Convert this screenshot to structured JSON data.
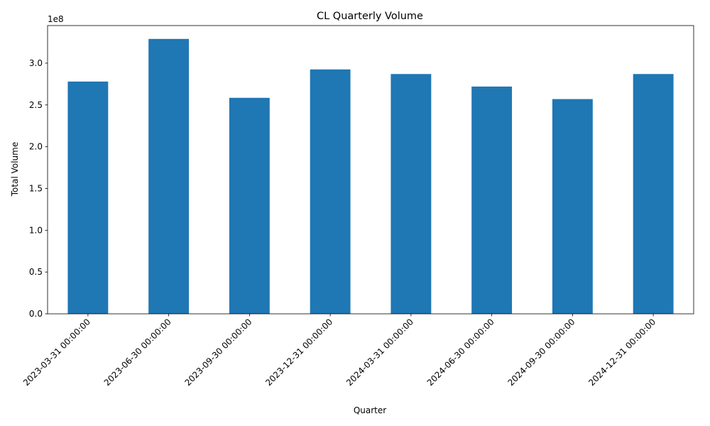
{
  "chart_data": {
    "type": "bar",
    "title": "CL Quarterly Volume",
    "xlabel": "Quarter",
    "ylabel": "Total Volume",
    "y_offset_label": "1e8",
    "y_scale": 100000000,
    "categories": [
      "2023-03-31 00:00:00",
      "2023-06-30 00:00:00",
      "2023-09-30 00:00:00",
      "2023-12-31 00:00:00",
      "2024-03-31 00:00:00",
      "2024-06-30 00:00:00",
      "2024-09-30 00:00:00",
      "2024-12-31 00:00:00"
    ],
    "values": [
      278000000,
      329000000,
      258500000,
      292500000,
      287000000,
      272000000,
      257000000,
      287000000
    ],
    "ylim": [
      0,
      345000000
    ],
    "yticks": [
      0,
      50000000,
      100000000,
      150000000,
      200000000,
      250000000,
      300000000
    ],
    "ytick_labels": [
      "0.0",
      "0.5",
      "1.0",
      "1.5",
      "2.0",
      "2.5",
      "3.0"
    ],
    "bar_color": "#1f77b4",
    "grid": false,
    "legend": "none"
  }
}
